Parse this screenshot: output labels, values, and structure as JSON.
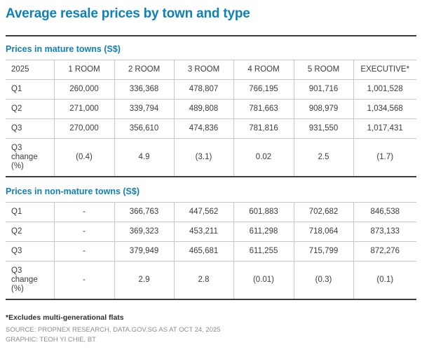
{
  "title": "Average resale prices by town and type",
  "colors": {
    "accent_blue": "#0e80ba",
    "text": "#3b3b3b",
    "border_light": "#c8c8c8",
    "border_dark": "#3d3d3d",
    "muted": "#8c8c8c"
  },
  "chart_data": [
    {
      "type": "table",
      "title": "Prices in mature towns (S$)",
      "columns": [
        "2025",
        "1 ROOM",
        "2 ROOM",
        "3 ROOM",
        "4 ROOM",
        "5 ROOM",
        "EXECUTIVE*"
      ],
      "rows": [
        {
          "label": "Q1",
          "values": [
            "260,000",
            "336,368",
            "478,807",
            "766,195",
            "901,716",
            "1,001,528"
          ]
        },
        {
          "label": "Q2",
          "values": [
            "271,000",
            "339,794",
            "489,808",
            "781,663",
            "908,979",
            "1,034,568"
          ]
        },
        {
          "label": "Q3",
          "values": [
            "270,000",
            "356,610",
            "474,836",
            "781,816",
            "931,550",
            "1,017,431"
          ]
        },
        {
          "label": "Q3 change (%)",
          "values": [
            "(0.4)",
            "4.9",
            "(3.1)",
            "0.02",
            "2.5",
            "(1.7)"
          ]
        }
      ]
    },
    {
      "type": "table",
      "title": "Prices in non-mature towns (S$)",
      "columns": [
        "2025",
        "1 ROOM",
        "2 ROOM",
        "3 ROOM",
        "4 ROOM",
        "5 ROOM",
        "EXECUTIVE*"
      ],
      "rows": [
        {
          "label": "Q1",
          "values": [
            "-",
            "366,763",
            "447,562",
            "601,883",
            "702,682",
            "846,538"
          ]
        },
        {
          "label": "Q2",
          "values": [
            "-",
            "369,323",
            "453,211",
            "611,298",
            "718,064",
            "873,133"
          ]
        },
        {
          "label": "Q3",
          "values": [
            "-",
            "379,949",
            "465,681",
            "611,255",
            "715,799",
            "872,276"
          ]
        },
        {
          "label": "Q3 change (%)",
          "values": [
            "-",
            "2.9",
            "2.8",
            "(0.01)",
            "(0.3)",
            "(0.1)"
          ]
        }
      ]
    }
  ],
  "footnote": "*Excludes multi-generational flats",
  "source_line": "SOURCE: PROPNEX RESEARCH, DATA.GOV.SG AS AT OCT 24, 2025",
  "credit_line": "GRAPHIC: TEOH YI CHIE, BT"
}
